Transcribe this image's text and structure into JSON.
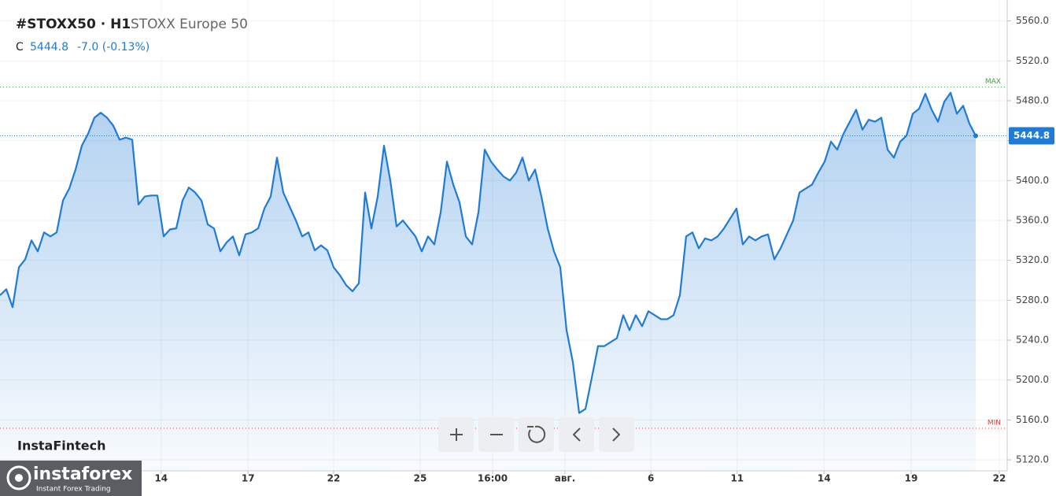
{
  "header": {
    "symbol": "#STOXX50 · H1",
    "name": "STOXX Europe 50",
    "close_prefix": "C",
    "close": "5444.8",
    "change": "-7.0 (-0.13%)"
  },
  "brand": {
    "watermark": "InstaFintech",
    "logo": "instaforex",
    "logo_sub": "Instant Forex Trading"
  },
  "chart_data": {
    "type": "area",
    "color": "#1f7bd6",
    "values": [
      5285,
      5291,
      5273,
      5313,
      5321,
      5340,
      5329,
      5348,
      5344,
      5348,
      5380,
      5392,
      5411,
      5435,
      5447,
      5463,
      5468,
      5463,
      5455,
      5441,
      5443,
      5441,
      5376,
      5384,
      5385,
      5385,
      5344,
      5351,
      5352,
      5380,
      5393,
      5388,
      5380,
      5356,
      5352,
      5329,
      5338,
      5344,
      5325,
      5346,
      5348,
      5352,
      5372,
      5384,
      5423,
      5388,
      5374,
      5360,
      5344,
      5348,
      5330,
      5335,
      5330,
      5313,
      5305,
      5295,
      5289,
      5297,
      5388,
      5352,
      5384,
      5435,
      5400,
      5354,
      5360,
      5352,
      5344,
      5329,
      5344,
      5336,
      5368,
      5419,
      5396,
      5378,
      5344,
      5336,
      5368,
      5431,
      5419,
      5411,
      5404,
      5400,
      5408,
      5423,
      5400,
      5411,
      5384,
      5352,
      5329,
      5313,
      5250,
      5218,
      5167,
      5171,
      5202,
      5234,
      5234,
      5238,
      5242,
      5265,
      5250,
      5265,
      5254,
      5269,
      5265,
      5261,
      5261,
      5265,
      5285,
      5344,
      5348,
      5332,
      5342,
      5340,
      5344,
      5352,
      5362,
      5372,
      5336,
      5344,
      5340,
      5344,
      5346,
      5321,
      5332,
      5346,
      5360,
      5388,
      5392,
      5396,
      5408,
      5419,
      5439,
      5431,
      5447,
      5459,
      5471,
      5451,
      5461,
      5459,
      5463,
      5431,
      5423,
      5439,
      5445,
      5467,
      5472,
      5487,
      5471,
      5459,
      5479,
      5488,
      5467,
      5475,
      5457,
      5444.8
    ],
    "xlim": [
      0,
      160
    ],
    "xticks": [
      {
        "value": 25.6,
        "label": "14"
      },
      {
        "value": 39.4,
        "label": "17"
      },
      {
        "value": 53,
        "label": "22"
      },
      {
        "value": 66.75,
        "label": "25"
      },
      {
        "value": 78.25,
        "label": "16:00"
      },
      {
        "value": 89.75,
        "label": "авг."
      },
      {
        "value": 103.4,
        "label": "6"
      },
      {
        "value": 117.1,
        "label": "11"
      },
      {
        "value": 130.9,
        "label": "14"
      },
      {
        "value": 144.75,
        "label": "19"
      },
      {
        "value": 158.75,
        "label": "22"
      }
    ],
    "ylim": [
      5109,
      5581
    ],
    "yticks": [
      {
        "value": 5120,
        "label": "5120.0"
      },
      {
        "value": 5160,
        "label": "5160.0"
      },
      {
        "value": 5200,
        "label": "5200.0"
      },
      {
        "value": 5240,
        "label": "5240.0"
      },
      {
        "value": 5280,
        "label": "5280.0"
      },
      {
        "value": 5320,
        "label": "5320.0"
      },
      {
        "value": 5360,
        "label": "5360.0"
      },
      {
        "value": 5400,
        "label": "5400.0"
      },
      {
        "value": 5440,
        "label": "5440.0"
      },
      {
        "value": 5480,
        "label": "5480.0"
      },
      {
        "value": 5520,
        "label": "5520.0"
      },
      {
        "value": 5560,
        "label": "5560.0"
      }
    ],
    "grid": true,
    "reference_lines": [
      {
        "label": "MAX",
        "value": 5493.7,
        "color": "#43a047"
      },
      {
        "label": "MIN",
        "value": 5151.6,
        "color": "#e53935"
      }
    ]
  }
}
